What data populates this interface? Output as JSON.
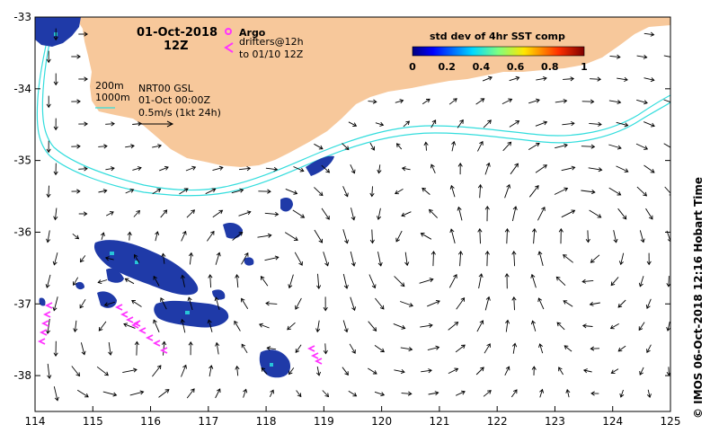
{
  "map": {
    "lon_range": [
      114,
      125
    ],
    "lat_range": [
      -38.5,
      -33
    ],
    "x_ticks": [
      "114",
      "115",
      "116",
      "117",
      "118",
      "119",
      "120",
      "121",
      "122",
      "123",
      "124",
      "125"
    ],
    "y_ticks": [
      "-33",
      "-34",
      "-35",
      "-36",
      "-37",
      "-38"
    ],
    "land_color": "#f7c89b",
    "contour_color": "#33dddd",
    "arrow_color": "#000000",
    "argo_color": "#ff33ff"
  },
  "header": {
    "date": "01-Oct-2018",
    "time": "12Z"
  },
  "legend_argo": {
    "argo_label": "Argo",
    "drifters_line1": "drifters@12h",
    "drifters_line2": "to 01/10 12Z"
  },
  "annotations": {
    "depth_200": "200m",
    "depth_1000": "1000m",
    "product": "NRT00 GSL",
    "valid_time": "01-Oct 00:00Z",
    "scale": "0.5m/s (1kt 24h)"
  },
  "colorbar": {
    "title": "std dev of 4hr SST comp",
    "ticks": [
      "0",
      "0.2",
      "0.4",
      "0.6",
      "0.8",
      "1"
    ]
  },
  "credit": "© IMOS 06-Oct-2018 12:16 Hobart Time"
}
